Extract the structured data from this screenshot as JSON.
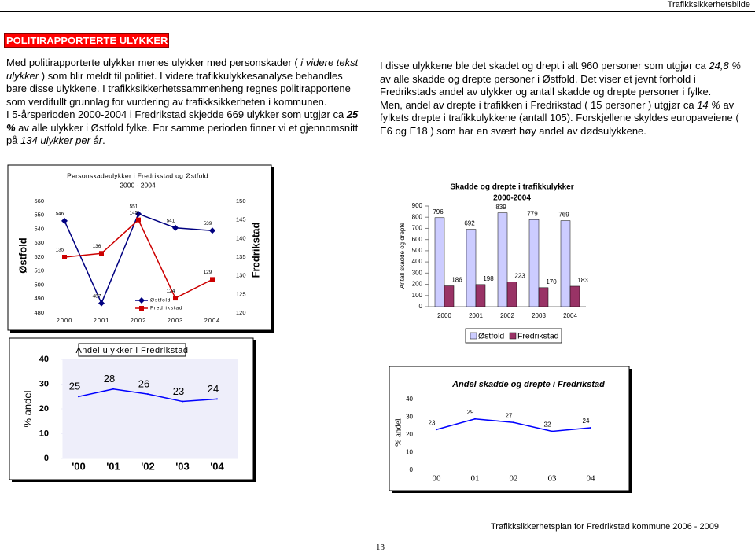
{
  "header": {
    "title": "Trafikksikkerhetsbilde"
  },
  "section_title": "POLITIRAPPORTERTE ULYKKER",
  "left_text": [
    [
      "Med politirapporterte ulykker menes ulykker med personskader ( ",
      {
        "text": "i videre tekst ulykker",
        "style": "italic"
      },
      " ) som blir meldt til politiet. I videre trafikkulykkesanalyse behandles bare disse ulykkene. I trafikksikkerhetssammenheng regnes politirapportene som verdifullt grunnlag for vurdering av trafikksikkerheten i kommunen."
    ],
    [
      "I 5-årsperioden 2000-2004 i Fredrikstad skjedde 669 ulykker som utgjør ca ",
      {
        "text": "25 %",
        "style": "bold-italic"
      },
      " av alle ulykker i Østfold fylke. For samme perioden finner vi et gjennomsnitt på ",
      {
        "text": "134 ulykker per år",
        "style": "italic"
      },
      "."
    ]
  ],
  "right_text": [
    [
      "I disse ulykkene ble det skadet og drept i alt  960 personer som utgjør ca ",
      {
        "text": "24,8 %",
        "style": "italic"
      },
      " av alle skadde og drepte personer i Østfold. Det viser et jevnt forhold i Fredrikstads andel av ulykker og antall skadde og drepte personer i fylke."
    ],
    [
      "Men, andel av drepte i trafikken i Fredrikstad ( 15 personer ) utgjør ca ",
      {
        "text": "14 %",
        "style": "italic"
      },
      " av fylkets drepte i trafikkulykkene (antall 105). Forskjellene skyldes europaveiene ( E6 og E18 ) som har en svært høy andel av dødsulykkene."
    ]
  ],
  "chart_data": [
    {
      "type": "line",
      "title": "Personskadeulykker i Fredrikstad og Østfold",
      "subtitle": "2000 - 2004",
      "categories": [
        "2000",
        "2001",
        "2002",
        "2003",
        "2004"
      ],
      "y_label": "Østfold",
      "y2_label": "Fredrikstad",
      "ylim": [
        480,
        560
      ],
      "yticks": [
        480,
        490,
        500,
        510,
        520,
        530,
        540,
        550,
        560
      ],
      "y2lim": [
        120,
        150
      ],
      "y2ticks": [
        120,
        125,
        130,
        135,
        140,
        145,
        150
      ],
      "series": [
        {
          "name": "Østfold",
          "color": "#000080",
          "values": [
            546,
            487,
            551,
            541,
            539
          ]
        },
        {
          "name": "Fredrikstad",
          "color": "#cc0000",
          "axis": "y2",
          "values": [
            135,
            136,
            145,
            124,
            129
          ]
        }
      ]
    },
    {
      "type": "bar",
      "title": "Skadde og drepte i trafikkulykker",
      "subtitle": "2000-2004",
      "categories": [
        "2000",
        "2001",
        "2002",
        "2003",
        "2004"
      ],
      "y_label": "Antall skadde og drepte",
      "ylim": [
        0,
        900
      ],
      "yticks": [
        0,
        100,
        200,
        300,
        400,
        500,
        600,
        700,
        800,
        900
      ],
      "series": [
        {
          "name": "Østfold",
          "color": "#ccccff",
          "values": [
            796,
            692,
            839,
            779,
            769
          ]
        },
        {
          "name": "Fredrikstad",
          "color": "#993366",
          "values": [
            186,
            198,
            223,
            170,
            183
          ]
        }
      ]
    },
    {
      "type": "line",
      "title": "Andel ulykker i Fredrikstad",
      "categories": [
        "'00",
        "'01",
        "'02",
        "'03",
        "'04"
      ],
      "y_label": "% andel",
      "ylim": [
        0,
        40
      ],
      "yticks": [
        0,
        10,
        20,
        30,
        40
      ],
      "color": "#0000ff",
      "values": [
        25,
        28,
        26,
        23,
        24
      ]
    },
    {
      "type": "line",
      "title": "Andel skadde og drepte i Fredrikstad",
      "categories": [
        "00",
        "01",
        "02",
        "03",
        "04"
      ],
      "y_label": "% andel",
      "ylim": [
        0,
        40
      ],
      "yticks": [
        0,
        10,
        20,
        30,
        40
      ],
      "color": "#0000ff",
      "values": [
        23,
        29,
        27,
        22,
        24
      ]
    }
  ],
  "footer": {
    "text": "Trafikksikkerhetsplan for Fredrikstad kommune 2006 - 2009",
    "page_number": "13"
  }
}
